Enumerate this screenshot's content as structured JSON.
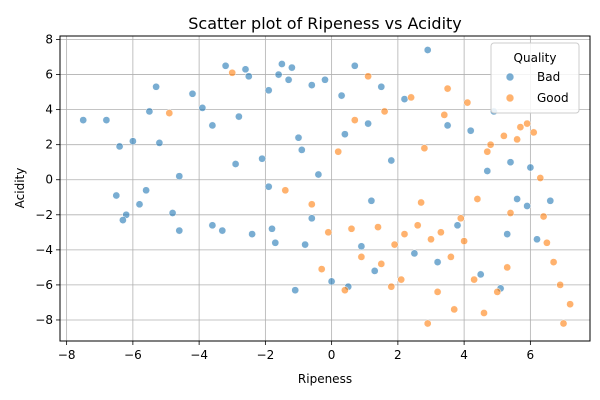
{
  "chart_data": {
    "type": "scatter",
    "title": "Scatter plot of Ripeness vs Acidity",
    "xlabel": "Ripeness",
    "ylabel": "Acidity",
    "xlim": [
      -8.2,
      7.8
    ],
    "ylim": [
      -9.2,
      8.2
    ],
    "x_ticks": [
      -8,
      -6,
      -4,
      -2,
      0,
      2,
      4,
      6
    ],
    "y_ticks": [
      -8,
      -6,
      -4,
      -2,
      0,
      2,
      4,
      6,
      8
    ],
    "grid": true,
    "legend": {
      "title": "Quality",
      "placement": "top-right"
    },
    "series": [
      {
        "name": "Bad",
        "color": "#1f77b4",
        "points": [
          [
            -7.5,
            3.4
          ],
          [
            -6.8,
            3.4
          ],
          [
            -6.4,
            1.9
          ],
          [
            -6.2,
            -2.0
          ],
          [
            -6.3,
            -2.3
          ],
          [
            -6.5,
            -0.9
          ],
          [
            -6.0,
            2.2
          ],
          [
            -5.8,
            -1.4
          ],
          [
            -5.3,
            5.3
          ],
          [
            -5.5,
            3.9
          ],
          [
            -5.6,
            -0.6
          ],
          [
            -4.8,
            -1.9
          ],
          [
            -4.6,
            -2.9
          ],
          [
            -4.2,
            4.9
          ],
          [
            -3.9,
            4.1
          ],
          [
            -3.6,
            -2.6
          ],
          [
            -3.2,
            6.5
          ],
          [
            -3.3,
            -2.9
          ],
          [
            -2.8,
            3.6
          ],
          [
            -2.6,
            6.3
          ],
          [
            -2.5,
            5.9
          ],
          [
            -2.4,
            -3.1
          ],
          [
            -2.1,
            1.2
          ],
          [
            -1.9,
            5.1
          ],
          [
            -1.8,
            -2.8
          ],
          [
            -1.7,
            -3.6
          ],
          [
            -1.6,
            6.0
          ],
          [
            -1.5,
            6.6
          ],
          [
            -1.3,
            5.7
          ],
          [
            -1.2,
            6.4
          ],
          [
            -1.1,
            -6.3
          ],
          [
            -1.0,
            2.4
          ],
          [
            -0.8,
            -3.7
          ],
          [
            -0.6,
            5.4
          ],
          [
            -0.4,
            0.3
          ],
          [
            -0.2,
            5.7
          ],
          [
            0.0,
            -5.8
          ],
          [
            0.3,
            4.8
          ],
          [
            0.5,
            -6.1
          ],
          [
            0.7,
            6.5
          ],
          [
            0.9,
            -3.8
          ],
          [
            1.1,
            3.2
          ],
          [
            1.3,
            -5.2
          ],
          [
            1.5,
            5.3
          ],
          [
            1.8,
            1.1
          ],
          [
            2.2,
            4.6
          ],
          [
            2.5,
            -4.2
          ],
          [
            2.9,
            7.4
          ],
          [
            3.2,
            -4.7
          ],
          [
            3.5,
            3.1
          ],
          [
            3.8,
            -2.6
          ],
          [
            4.2,
            2.8
          ],
          [
            4.5,
            -5.4
          ],
          [
            4.9,
            3.9
          ],
          [
            5.1,
            -6.2
          ],
          [
            5.4,
            1.0
          ],
          [
            5.6,
            -1.1
          ],
          [
            5.9,
            -1.5
          ],
          [
            6.0,
            0.7
          ],
          [
            6.2,
            -3.4
          ],
          [
            6.6,
            -1.2
          ],
          [
            5.3,
            -3.1
          ],
          [
            4.7,
            0.5
          ],
          [
            -0.6,
            -2.2
          ],
          [
            -2.9,
            0.9
          ],
          [
            -4.6,
            0.2
          ],
          [
            -5.2,
            2.1
          ],
          [
            -3.6,
            3.1
          ],
          [
            -1.9,
            -0.4
          ],
          [
            -0.9,
            1.7
          ],
          [
            1.2,
            -1.2
          ],
          [
            0.4,
            2.6
          ]
        ]
      },
      {
        "name": "Good",
        "color": "#ff7f0e",
        "points": [
          [
            7.2,
            -7.1
          ],
          [
            7.0,
            -8.2
          ],
          [
            6.9,
            -6.0
          ],
          [
            6.7,
            -4.7
          ],
          [
            6.5,
            -3.6
          ],
          [
            6.4,
            -2.1
          ],
          [
            6.3,
            0.1
          ],
          [
            6.1,
            2.7
          ],
          [
            5.9,
            3.2
          ],
          [
            5.6,
            2.3
          ],
          [
            5.4,
            -1.9
          ],
          [
            5.3,
            -5.0
          ],
          [
            5.0,
            -6.4
          ],
          [
            4.6,
            -7.6
          ],
          [
            4.3,
            -5.7
          ],
          [
            4.0,
            -3.5
          ],
          [
            3.7,
            -7.4
          ],
          [
            3.5,
            5.2
          ],
          [
            3.2,
            -6.4
          ],
          [
            2.9,
            -8.2
          ],
          [
            2.7,
            -1.3
          ],
          [
            2.4,
            4.7
          ],
          [
            2.1,
            -5.7
          ],
          [
            1.8,
            -6.1
          ],
          [
            1.6,
            3.9
          ],
          [
            1.4,
            -2.7
          ],
          [
            1.1,
            5.9
          ],
          [
            0.9,
            -4.4
          ],
          [
            0.7,
            3.4
          ],
          [
            0.4,
            -6.3
          ],
          [
            0.2,
            1.6
          ],
          [
            -0.1,
            -3.0
          ],
          [
            -0.3,
            -5.1
          ],
          [
            -0.6,
            -1.4
          ],
          [
            -1.4,
            -0.6
          ],
          [
            -3.0,
            6.1
          ],
          [
            -4.9,
            3.8
          ],
          [
            3.9,
            -2.2
          ],
          [
            3.3,
            -3.0
          ],
          [
            2.6,
            -2.6
          ],
          [
            3.0,
            -3.4
          ],
          [
            2.2,
            -3.1
          ],
          [
            1.9,
            -3.7
          ],
          [
            3.6,
            -4.4
          ],
          [
            4.4,
            -1.1
          ],
          [
            4.8,
            2.0
          ],
          [
            5.2,
            2.5
          ],
          [
            1.5,
            -4.8
          ],
          [
            0.6,
            -2.8
          ],
          [
            2.8,
            1.8
          ],
          [
            3.4,
            3.7
          ],
          [
            4.1,
            4.4
          ],
          [
            4.7,
            1.6
          ],
          [
            5.7,
            3.0
          ]
        ]
      }
    ]
  }
}
